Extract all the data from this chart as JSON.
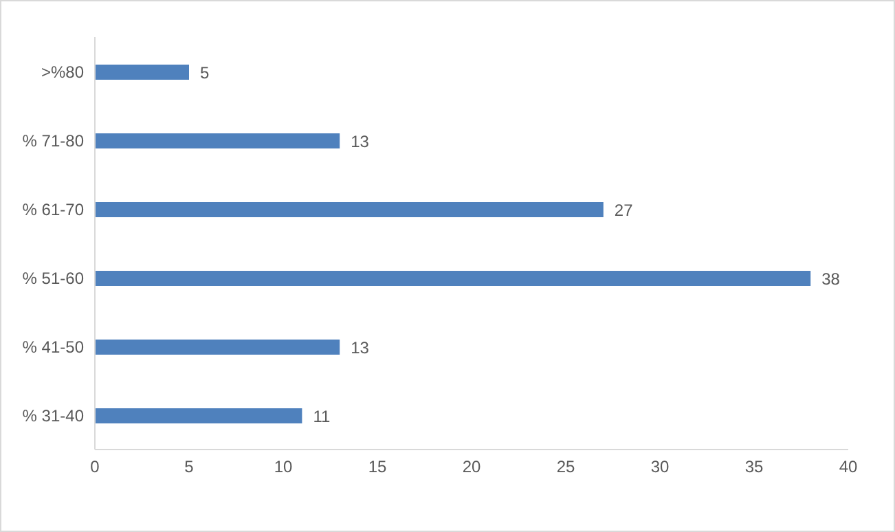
{
  "chart_data": {
    "type": "bar",
    "orientation": "horizontal",
    "categories": [
      ">%80",
      "% 71-80",
      "% 61-70",
      "% 51-60",
      "% 41-50",
      "% 31-40"
    ],
    "values": [
      5,
      13,
      27,
      38,
      13,
      11
    ],
    "color": "#4f81bd",
    "xlim": [
      0,
      40
    ],
    "xticks": [
      0,
      5,
      10,
      15,
      20,
      25,
      30,
      35,
      40
    ],
    "grid": false,
    "data_labels": true
  }
}
